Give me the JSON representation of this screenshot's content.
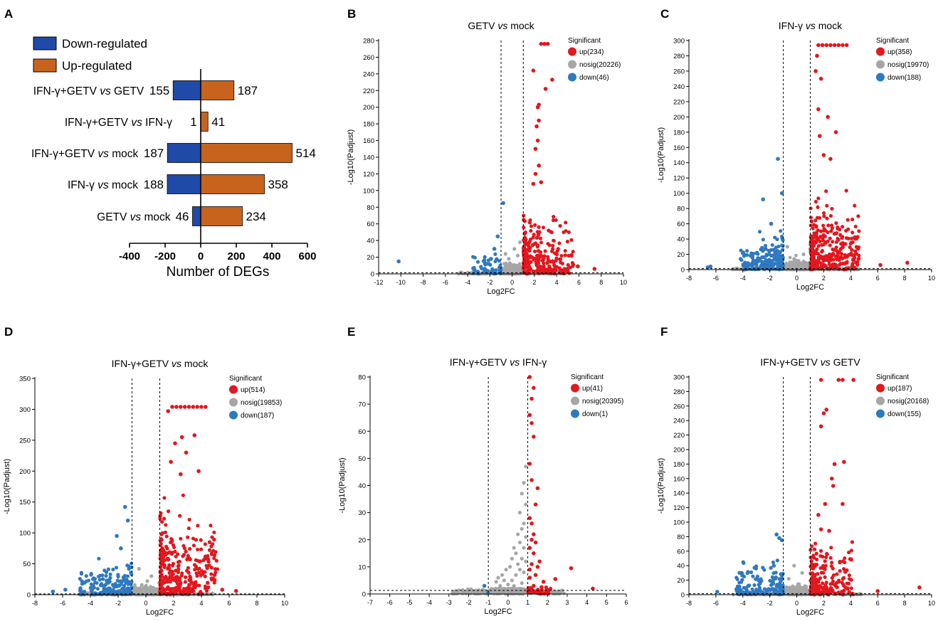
{
  "colors": {
    "down_bar": "#1f4aa8",
    "up_bar": "#c8631d",
    "up": "#e3171e",
    "nosig": "#a6a6a6",
    "down": "#2f79c0",
    "axis": "#000000"
  },
  "chart_data": [
    {
      "id": "A",
      "panel_label": "A",
      "type": "bar",
      "orientation": "horizontal-diverging",
      "legend": [
        "Down-regulated",
        "Up-regulated"
      ],
      "xlabel": "Number of DEGs",
      "xlim": [
        -400,
        600
      ],
      "xticks": [
        -400,
        -200,
        0,
        200,
        400,
        600
      ],
      "categories": [
        "IFN-γ+GETV vs GETV",
        "IFN-γ+GETV vs IFN-γ",
        "IFN-γ+GETV vs mock",
        "IFN-γ vs mock",
        "GETV vs mock"
      ],
      "category_parts": [
        [
          "IFN-γ+GETV ",
          "vs",
          " GETV"
        ],
        [
          "IFN-γ+GETV ",
          "vs",
          " IFN-γ"
        ],
        [
          "IFN-γ+GETV ",
          "vs",
          " mock"
        ],
        [
          "IFN-γ ",
          "vs",
          " mock"
        ],
        [
          "GETV ",
          "vs",
          " mock"
        ]
      ],
      "series": [
        {
          "name": "Down-regulated",
          "values": [
            155,
            1,
            187,
            188,
            46
          ]
        },
        {
          "name": "Up-regulated",
          "values": [
            187,
            41,
            514,
            358,
            234
          ]
        }
      ]
    },
    {
      "id": "B",
      "panel_label": "B",
      "type": "scatter",
      "title_parts": [
        "GETV ",
        "vs",
        " mock"
      ],
      "xlabel": "Log2FC",
      "ylabel": "-Log10(Padjust)",
      "xlim": [
        -12,
        10
      ],
      "xticks": [
        -12,
        -10,
        -8,
        -6,
        -4,
        -2,
        0,
        2,
        4,
        6,
        8,
        10
      ],
      "ylim": [
        0,
        280
      ],
      "yticks": [
        0,
        20,
        40,
        60,
        80,
        100,
        120,
        140,
        160,
        180,
        200,
        220,
        240,
        260,
        280
      ],
      "legend_title": "Significant",
      "legend": [
        "up(234)",
        "nosig(20226)",
        "down(46)"
      ],
      "counts": {
        "up": 234,
        "nosig": 20226,
        "down": 46
      },
      "up_outliers": [
        [
          2.6,
          276
        ],
        [
          2.9,
          276
        ],
        [
          3.2,
          276
        ],
        [
          1.9,
          244
        ],
        [
          3.6,
          233
        ],
        [
          3.0,
          222
        ],
        [
          2.4,
          203
        ],
        [
          2.3,
          200
        ],
        [
          2.4,
          184
        ],
        [
          2.2,
          177
        ],
        [
          2.3,
          160
        ],
        [
          2.1,
          150
        ],
        [
          2.4,
          130
        ],
        [
          2.1,
          120
        ],
        [
          1.9,
          108
        ],
        [
          2.6,
          110
        ],
        [
          7.4,
          6
        ],
        [
          5.9,
          9
        ]
      ],
      "down_outliers": [
        [
          -10.2,
          15
        ],
        [
          -0.8,
          85
        ],
        [
          -1.3,
          45
        ],
        [
          -1.6,
          30
        ],
        [
          -1.9,
          18
        ],
        [
          -2.3,
          12
        ]
      ],
      "nosig_outliers": [
        [
          -0.3,
          18
        ],
        [
          0.2,
          30
        ],
        [
          0.5,
          22
        ],
        [
          -0.6,
          24
        ],
        [
          0.7,
          38
        ]
      ],
      "up_spread": [
        1.0,
        5.5,
        75
      ],
      "down_spread": [
        -3.5,
        -1.0,
        25
      ],
      "nosig_spread": [
        0.6,
        8,
        2.8,
        45
      ]
    },
    {
      "id": "C",
      "panel_label": "C",
      "type": "scatter",
      "title_parts": [
        "IFN-γ ",
        "vs",
        " mock"
      ],
      "xlabel": "Log2FC",
      "ylabel": "-Log10(Padjust)",
      "xlim": [
        -8,
        10
      ],
      "xticks": [
        -8,
        -6,
        -4,
        -2,
        0,
        2,
        4,
        6,
        8,
        10
      ],
      "ylim": [
        0,
        300
      ],
      "yticks": [
        0,
        20,
        40,
        60,
        80,
        100,
        120,
        140,
        160,
        180,
        200,
        220,
        240,
        260,
        280,
        300
      ],
      "legend_title": "Significant",
      "legend": [
        "up(358)",
        "nosig(19970)",
        "down(188)"
      ],
      "counts": {
        "up": 358,
        "nosig": 19970,
        "down": 188
      },
      "up_outliers": [
        [
          1.6,
          294
        ],
        [
          1.9,
          294
        ],
        [
          2.2,
          294
        ],
        [
          2.5,
          294
        ],
        [
          2.8,
          294
        ],
        [
          3.1,
          294
        ],
        [
          3.4,
          294
        ],
        [
          3.7,
          294
        ],
        [
          1.5,
          280
        ],
        [
          1.4,
          260
        ],
        [
          1.8,
          250
        ],
        [
          1.6,
          210
        ],
        [
          2.3,
          200
        ],
        [
          2.9,
          180
        ],
        [
          1.7,
          175
        ],
        [
          2.5,
          145
        ],
        [
          2.0,
          150
        ],
        [
          8.2,
          9
        ],
        [
          6.2,
          6
        ]
      ],
      "down_outliers": [
        [
          -1.4,
          145
        ],
        [
          -1.1,
          100
        ],
        [
          -2.5,
          92
        ],
        [
          -1.9,
          60
        ],
        [
          -3.4,
          18
        ],
        [
          -6.4,
          4
        ],
        [
          -6.6,
          3
        ]
      ],
      "nosig_outliers": [
        [
          -0.7,
          30
        ],
        [
          0.5,
          20
        ],
        [
          -0.2,
          14
        ]
      ],
      "up_spread": [
        1.0,
        4.6,
        90
      ],
      "down_spread": [
        -4.2,
        -1.0,
        45
      ],
      "nosig_spread": [
        0.6,
        8,
        2.8,
        35
      ]
    },
    {
      "id": "D",
      "panel_label": "D",
      "type": "scatter",
      "title_parts": [
        "IFN-γ+GETV ",
        "vs",
        " mock"
      ],
      "xlabel": "Log2FC",
      "ylabel": "-Log10(Padjust)",
      "xlim": [
        -8,
        10
      ],
      "xticks": [
        -8,
        -6,
        -4,
        -2,
        0,
        2,
        4,
        6,
        8,
        10
      ],
      "ylim": [
        0,
        350
      ],
      "yticks": [
        0,
        50,
        100,
        150,
        200,
        250,
        300,
        350
      ],
      "legend_title": "Significant",
      "legend": [
        "up(514)",
        "nosig(19853)",
        "down(187)"
      ],
      "counts": {
        "up": 514,
        "nosig": 19853,
        "down": 187
      },
      "up_outliers": [
        [
          1.9,
          304
        ],
        [
          2.2,
          304
        ],
        [
          2.5,
          304
        ],
        [
          2.8,
          304
        ],
        [
          3.1,
          304
        ],
        [
          3.4,
          304
        ],
        [
          3.7,
          304
        ],
        [
          4.0,
          304
        ],
        [
          4.3,
          304
        ],
        [
          1.6,
          297
        ],
        [
          3.5,
          258
        ],
        [
          2.6,
          255
        ],
        [
          2.1,
          245
        ],
        [
          2.9,
          230
        ],
        [
          1.8,
          215
        ],
        [
          3.8,
          200
        ],
        [
          2.5,
          195
        ],
        [
          6.5,
          6
        ],
        [
          5.5,
          8
        ]
      ],
      "down_outliers": [
        [
          -1.5,
          142
        ],
        [
          -1.3,
          120
        ],
        [
          -2.1,
          95
        ],
        [
          -1.8,
          75
        ],
        [
          -3.8,
          15
        ],
        [
          -5.8,
          8
        ],
        [
          -6.7,
          5
        ]
      ],
      "nosig_outliers": [
        [
          -0.5,
          42
        ],
        [
          0.4,
          30
        ],
        [
          0.1,
          22
        ]
      ],
      "up_spread": [
        1.0,
        5.2,
        140
      ],
      "down_spread": [
        -4.8,
        -1.0,
        55
      ],
      "nosig_spread": [
        0.6,
        8,
        2.8,
        45
      ]
    },
    {
      "id": "E",
      "panel_label": "E",
      "type": "scatter",
      "title_parts": [
        "IFN-γ+GETV ",
        "vs",
        " IFN-γ"
      ],
      "xlabel": "Log2FC",
      "ylabel": "-Log10(Padjust)",
      "xlim": [
        -7,
        6
      ],
      "xticks": [
        -7,
        -6,
        -5,
        -4,
        -3,
        -2,
        -1,
        0,
        1,
        2,
        3,
        4,
        5,
        6
      ],
      "ylim": [
        0,
        80
      ],
      "yticks": [
        0,
        10,
        20,
        30,
        40,
        50,
        60,
        70,
        80
      ],
      "legend_title": "Significant",
      "legend": [
        "up(41)",
        "nosig(20395)",
        "down(1)"
      ],
      "counts": {
        "up": 41,
        "nosig": 20395,
        "down": 1
      },
      "up_outliers": [
        [
          1.1,
          80
        ],
        [
          1.3,
          76
        ],
        [
          1.2,
          72
        ],
        [
          1.1,
          66
        ],
        [
          1.2,
          63
        ],
        [
          1.3,
          58
        ],
        [
          1.5,
          39
        ],
        [
          1.1,
          48
        ],
        [
          1.2,
          42
        ],
        [
          1.4,
          33
        ],
        [
          1.1,
          28
        ],
        [
          1.2,
          26
        ],
        [
          1.3,
          22
        ],
        [
          1.2,
          20
        ],
        [
          1.4,
          19
        ],
        [
          1.1,
          17
        ],
        [
          1.3,
          15
        ],
        [
          1.6,
          12
        ],
        [
          1.2,
          11
        ],
        [
          1.5,
          10
        ],
        [
          1.4,
          7
        ],
        [
          3.2,
          9.5
        ],
        [
          2.4,
          5.5
        ],
        [
          4.3,
          2
        ],
        [
          1.8,
          4.5
        ],
        [
          1.1,
          6
        ],
        [
          1.3,
          3
        ],
        [
          1.7,
          2.5
        ],
        [
          2.0,
          1.5
        ],
        [
          1.2,
          1.8
        ],
        [
          1.1,
          9
        ]
      ],
      "down_outliers": [
        [
          -1.2,
          3
        ]
      ],
      "nosig_outliers": [
        [
          0.9,
          47
        ],
        [
          0.8,
          41
        ],
        [
          0.7,
          37
        ],
        [
          0.9,
          33
        ],
        [
          0.6,
          30
        ],
        [
          0.8,
          26
        ],
        [
          0.7,
          24
        ],
        [
          0.5,
          22
        ],
        [
          0.9,
          21
        ],
        [
          0.6,
          19
        ],
        [
          0.3,
          17
        ],
        [
          0.8,
          17
        ],
        [
          0.4,
          15
        ],
        [
          0.7,
          13
        ],
        [
          0.2,
          13
        ],
        [
          0.9,
          12
        ],
        [
          0.5,
          11
        ],
        [
          0.1,
          10
        ],
        [
          0.6,
          9
        ],
        [
          -0.1,
          9
        ],
        [
          0.8,
          8
        ],
        [
          -0.3,
          7
        ],
        [
          0.4,
          7
        ],
        [
          -0.5,
          6
        ],
        [
          0.2,
          5
        ],
        [
          -0.2,
          5
        ],
        [
          0.7,
          4
        ],
        [
          -0.6,
          4.5
        ],
        [
          0.0,
          3.5
        ],
        [
          0.3,
          3
        ],
        [
          -0.4,
          3
        ]
      ],
      "up_spread": [
        1.0,
        2.2,
        3
      ],
      "down_spread": [
        -1.3,
        -1.0,
        2
      ],
      "nosig_spread": [
        0.6,
        4.8,
        2.8,
        2
      ]
    },
    {
      "id": "F",
      "panel_label": "F",
      "type": "scatter",
      "title_parts": [
        "IFN-γ+GETV ",
        "vs",
        " GETV"
      ],
      "xlabel": "Log2FC",
      "ylabel": "-Log10(Padjust)",
      "xlim": [
        -8,
        10
      ],
      "xticks": [
        -8,
        -6,
        -4,
        -2,
        0,
        2,
        4,
        6,
        8,
        10
      ],
      "ylim": [
        0,
        300
      ],
      "yticks": [
        0,
        20,
        40,
        60,
        80,
        100,
        120,
        140,
        160,
        180,
        200,
        220,
        240,
        260,
        280,
        300
      ],
      "legend_title": "Significant",
      "legend": [
        "up(187)",
        "nosig(20168)",
        "down(155)"
      ],
      "counts": {
        "up": 187,
        "nosig": 20168,
        "down": 155
      },
      "up_outliers": [
        [
          1.8,
          296
        ],
        [
          3.1,
          296
        ],
        [
          3.4,
          296
        ],
        [
          4.2,
          296
        ],
        [
          2.2,
          255
        ],
        [
          2.0,
          250
        ],
        [
          1.8,
          232
        ],
        [
          2.8,
          180
        ],
        [
          3.5,
          183
        ],
        [
          2.6,
          160
        ],
        [
          2.7,
          150
        ],
        [
          2.1,
          125
        ],
        [
          3.4,
          125
        ],
        [
          1.6,
          110
        ],
        [
          1.8,
          90
        ],
        [
          9.1,
          10
        ],
        [
          6.0,
          5
        ],
        [
          2.4,
          88
        ]
      ],
      "down_outliers": [
        [
          -1.5,
          83
        ],
        [
          -1.3,
          78
        ],
        [
          -1.1,
          75
        ],
        [
          -1.7,
          40
        ],
        [
          -3.6,
          12
        ],
        [
          -5.9,
          4
        ]
      ],
      "nosig_outliers": [
        [
          -0.2,
          40
        ],
        [
          0.4,
          30
        ],
        [
          -0.6,
          22
        ]
      ],
      "up_spread": [
        1.0,
        4.2,
        80
      ],
      "down_spread": [
        -4.5,
        -1.0,
        50
      ],
      "nosig_spread": [
        0.6,
        8,
        2.8,
        40
      ]
    }
  ]
}
